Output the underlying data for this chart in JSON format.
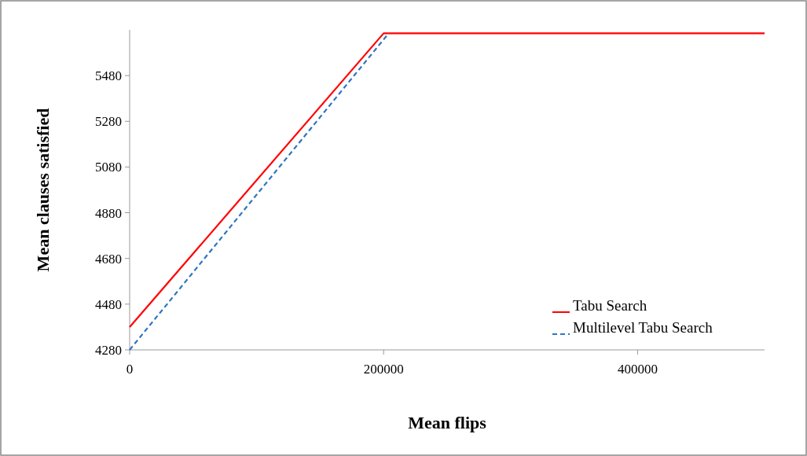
{
  "chart_data": {
    "type": "line",
    "xlabel": "Mean flips",
    "ylabel": "Mean clauses satisfied",
    "xlim": [
      0,
      500000
    ],
    "xticks": [
      0,
      200000,
      400000
    ],
    "ylim": [
      4280,
      5680
    ],
    "yticks": [
      4280,
      4480,
      4680,
      4880,
      5080,
      5280,
      5480
    ],
    "series": [
      {
        "name": "Tabu Search",
        "color": "#ff0000",
        "x": [
          0,
          200000,
          500000
        ],
        "values": [
          4380,
          5665,
          5665
        ],
        "line_style": "solid"
      },
      {
        "name": "Multilevel Tabu Search",
        "color": "#2e75c0",
        "x": [
          0,
          204000
        ],
        "values": [
          4280,
          5665
        ],
        "line_style": "dashed"
      }
    ],
    "legend": "bottom right",
    "grid": false,
    "marker": "none"
  }
}
